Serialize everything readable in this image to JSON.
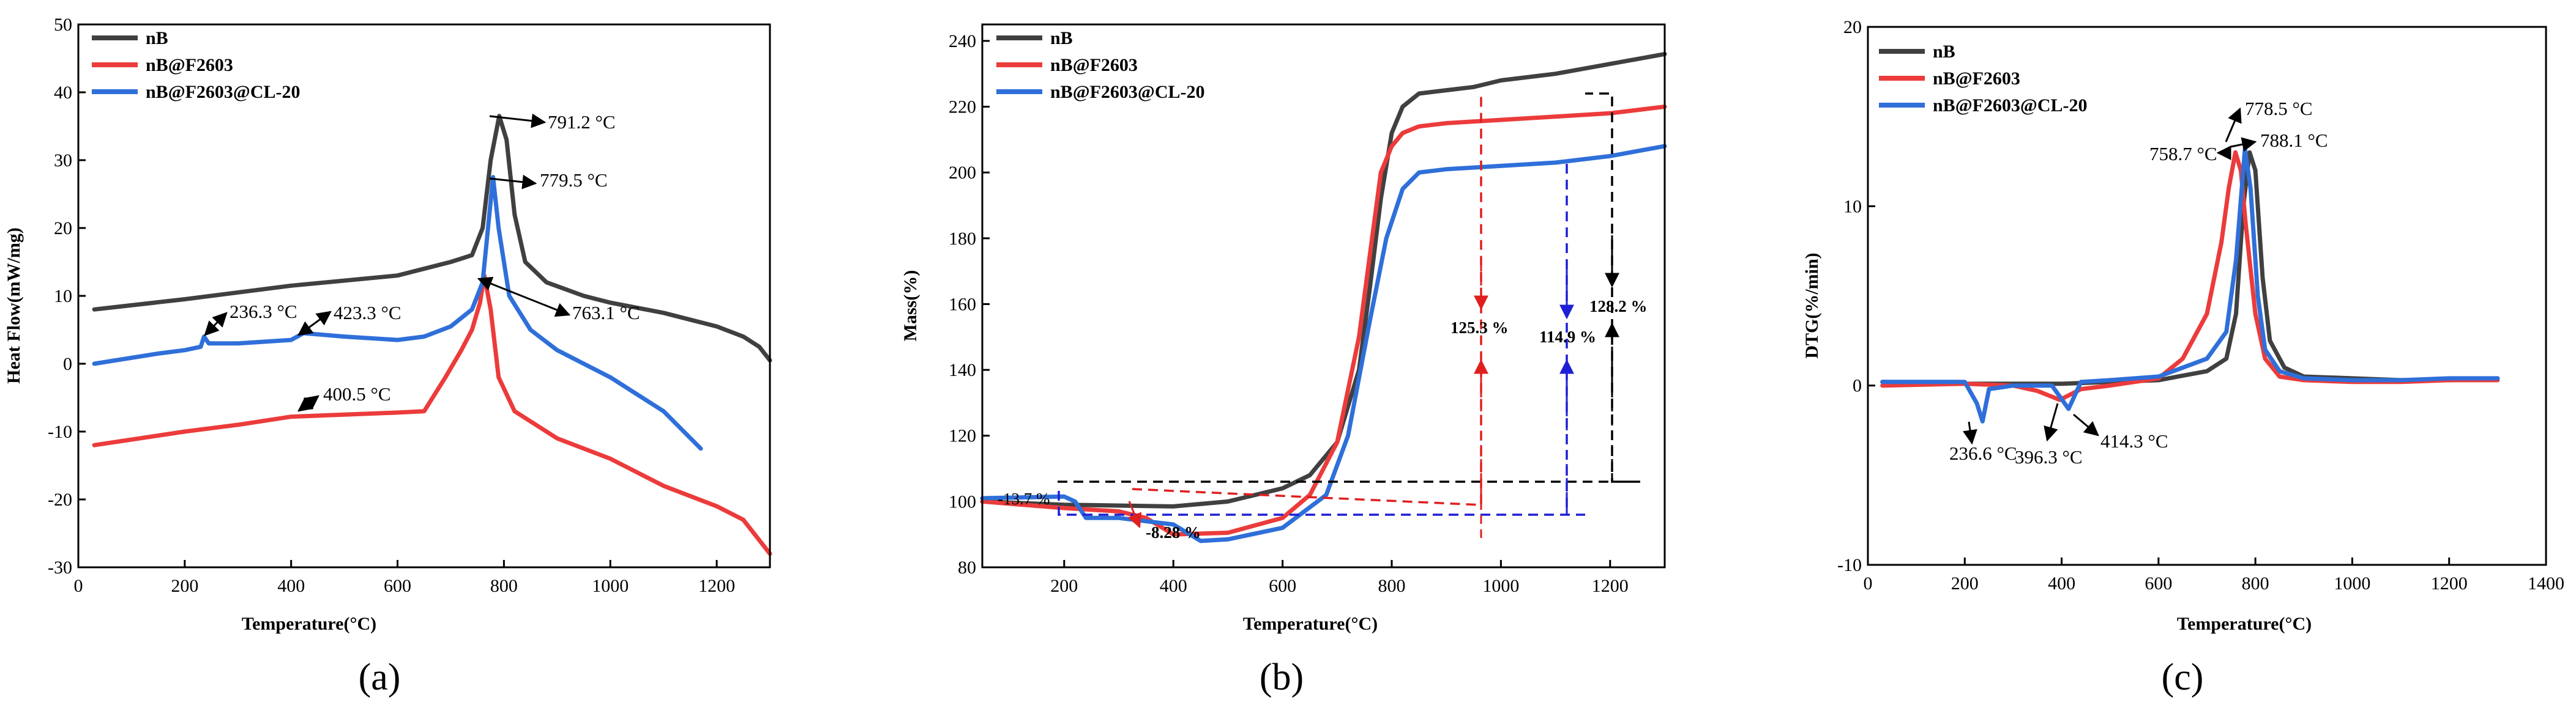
{
  "figure": {
    "panel_labels": [
      "(a)",
      "(b)",
      "(c)"
    ]
  },
  "colors": {
    "nB": "#404040",
    "nB@F2603": "#ec3b3b",
    "nB@F2603@CL-20": "#2f6fd9",
    "blue_annot": "#1f1fd6",
    "red_annot": "#e01f1f",
    "black_annot": "#000000"
  },
  "chart_data": [
    {
      "id": "a",
      "type": "line",
      "title": "",
      "xlabel": "Temperature(°C)",
      "ylabel": "Heat Flow(mW/mg)",
      "xlim": [
        0,
        1300
      ],
      "ylim": [
        -30,
        50
      ],
      "xticks": [
        0,
        200,
        400,
        600,
        800,
        1000,
        1200
      ],
      "yticks": [
        -30,
        -20,
        -10,
        0,
        10,
        20,
        30,
        40,
        50
      ],
      "legend": {
        "position": "top-left",
        "entries": [
          "nB",
          "nB@F2603",
          "nB@F2603@CL-20"
        ]
      },
      "series": [
        {
          "name": "nB",
          "x": [
            30,
            200,
            400,
            600,
            700,
            740,
            760,
            775,
            791.2,
            805,
            820,
            840,
            880,
            950,
            1000,
            1100,
            1200,
            1250,
            1280,
            1300
          ],
          "y": [
            8,
            9.5,
            11.5,
            13,
            15,
            16,
            20,
            30,
            36.5,
            33,
            22,
            15,
            12,
            10,
            9,
            7.5,
            5.5,
            4,
            2.5,
            0.5
          ]
        },
        {
          "name": "nB@F2603",
          "x": [
            30,
            200,
            300,
            400.5,
            500,
            600,
            650,
            690,
            720,
            740,
            755,
            763.1,
            775,
            790,
            820,
            900,
            1000,
            1100,
            1200,
            1250,
            1300
          ],
          "y": [
            -12,
            -10,
            -9,
            -7.8,
            -7.5,
            -7.2,
            -7,
            -2,
            2,
            5,
            9,
            13,
            8,
            -2,
            -7,
            -11,
            -14,
            -18,
            -21,
            -23,
            -28
          ]
        },
        {
          "name": "nB@F2603@CL-20",
          "x": [
            30,
            150,
            200,
            230,
            236.3,
            245,
            300,
            400,
            423.3,
            500,
            600,
            650,
            700,
            740,
            760,
            779.5,
            790,
            810,
            850,
            900,
            1000,
            1100,
            1170
          ],
          "y": [
            0,
            1.5,
            2,
            2.5,
            4,
            3,
            3,
            3.5,
            4.5,
            4,
            3.5,
            4,
            5.5,
            8,
            12,
            27.5,
            20,
            10,
            5,
            2,
            -2,
            -7,
            -12.5
          ]
        }
      ],
      "annotations": [
        {
          "text": "791.2 °C",
          "x": 791.2,
          "y": 36.5
        },
        {
          "text": "779.5 °C",
          "x": 779.5,
          "y": 27.5
        },
        {
          "text": "763.1 °C",
          "x": 763.1,
          "y": 13
        },
        {
          "text": "236.3 °C",
          "x": 236.3,
          "y": 4
        },
        {
          "text": "423.3 °C",
          "x": 423.3,
          "y": 4.5
        },
        {
          "text": "400.5 °C",
          "x": 400.5,
          "y": -7.8
        }
      ]
    },
    {
      "id": "b",
      "type": "line",
      "title": "",
      "xlabel": "Temperature(°C)",
      "ylabel": "Mass(%)",
      "xlim": [
        50,
        1300
      ],
      "ylim": [
        80,
        245
      ],
      "xticks": [
        200,
        400,
        600,
        800,
        1000,
        1200
      ],
      "yticks": [
        80,
        100,
        120,
        140,
        160,
        180,
        200,
        220,
        240
      ],
      "legend": {
        "position": "top-left",
        "entries": [
          "nB",
          "nB@F2603",
          "nB@F2603@CL-20"
        ]
      },
      "series": [
        {
          "name": "nB",
          "x": [
            50,
            200,
            400,
            500,
            600,
            650,
            700,
            740,
            760,
            780,
            800,
            820,
            850,
            900,
            950,
            1000,
            1100,
            1200,
            1300
          ],
          "y": [
            100,
            99,
            98.5,
            100,
            104,
            108,
            118,
            140,
            165,
            192,
            212,
            220,
            224,
            225,
            226,
            228,
            230,
            233,
            236
          ]
        },
        {
          "name": "nB@F2603",
          "x": [
            50,
            200,
            300,
            350,
            400,
            500,
            600,
            650,
            700,
            740,
            760,
            780,
            800,
            820,
            850,
            900,
            1000,
            1100,
            1200,
            1300
          ],
          "y": [
            100,
            98,
            97,
            95,
            90,
            90.5,
            95,
            102,
            118,
            150,
            175,
            200,
            208,
            212,
            214,
            215,
            216,
            217,
            218,
            220
          ]
        },
        {
          "name": "nB@F2603@CL-20",
          "x": [
            50,
            200,
            220,
            240,
            300,
            400,
            450,
            500,
            600,
            680,
            720,
            760,
            790,
            820,
            850,
            900,
            1000,
            1100,
            1200,
            1300
          ],
          "y": [
            101,
            101.5,
            100,
            95,
            95,
            93,
            88,
            88.5,
            92,
            102,
            120,
            155,
            180,
            195,
            200,
            201,
            202,
            203,
            205,
            208
          ]
        }
      ],
      "annotations": [
        {
          "text": "-13.7 %",
          "color": "blue"
        },
        {
          "text": "-8.28 %",
          "color": "red"
        },
        {
          "text": "125.3 %",
          "color": "red"
        },
        {
          "text": "114.9 %",
          "color": "blue"
        },
        {
          "text": "128.2 %",
          "color": "black"
        }
      ]
    },
    {
      "id": "c",
      "type": "line",
      "title": "",
      "xlabel": "Temperature(°C)",
      "ylabel": "DTG(%/min)",
      "xlim": [
        0,
        1400
      ],
      "ylim": [
        -10,
        20
      ],
      "xticks": [
        0,
        200,
        400,
        600,
        800,
        1000,
        1200,
        1400
      ],
      "yticks": [
        -10,
        0,
        10,
        20
      ],
      "legend": {
        "position": "top-left",
        "entries": [
          "nB",
          "nB@F2603",
          "nB@F2603@CL-20"
        ]
      },
      "series": [
        {
          "name": "nB",
          "x": [
            30,
            200,
            400,
            600,
            700,
            740,
            760,
            775,
            788.1,
            800,
            815,
            830,
            860,
            900,
            1000,
            1100,
            1200,
            1300
          ],
          "y": [
            0.2,
            0.1,
            0.1,
            0.3,
            0.8,
            1.5,
            4,
            10,
            13,
            12,
            6,
            2.5,
            1,
            0.5,
            0.4,
            0.3,
            0.3,
            0.4
          ]
        },
        {
          "name": "nB@F2603",
          "x": [
            30,
            200,
            300,
            350,
            396.3,
            440,
            500,
            600,
            650,
            700,
            730,
            745,
            758.7,
            770,
            780,
            800,
            820,
            850,
            900,
            1000,
            1100,
            1200,
            1300
          ],
          "y": [
            0,
            0.1,
            0,
            -0.3,
            -0.8,
            -0.2,
            0,
            0.4,
            1.5,
            4,
            8,
            11,
            13,
            12,
            9,
            4,
            1.5,
            0.5,
            0.3,
            0.2,
            0.2,
            0.3,
            0.3
          ]
        },
        {
          "name": "nB@F2603@CL-20",
          "x": [
            30,
            200,
            225,
            236.6,
            250,
            300,
            380,
            414.3,
            440,
            500,
            600,
            700,
            740,
            760,
            778.5,
            790,
            805,
            820,
            850,
            900,
            1000,
            1100,
            1200,
            1300
          ],
          "y": [
            0.2,
            0.2,
            -1,
            -2,
            -0.2,
            0,
            0,
            -1.3,
            0.2,
            0.3,
            0.5,
            1.5,
            3,
            7,
            13.2,
            11,
            5,
            2,
            0.8,
            0.4,
            0.3,
            0.3,
            0.4,
            0.4
          ]
        }
      ],
      "annotations": [
        {
          "text": "778.5 °C",
          "x": 778.5,
          "y": 13.2
        },
        {
          "text": "758.7 °C",
          "x": 758.7,
          "y": 13
        },
        {
          "text": "788.1 °C",
          "x": 788.1,
          "y": 13
        },
        {
          "text": "236.6 °C",
          "x": 236.6,
          "y": -2
        },
        {
          "text": "396.3 °C",
          "x": 396.3,
          "y": -0.8
        },
        {
          "text": "414.3 °C",
          "x": 414.3,
          "y": -1.3
        }
      ]
    }
  ]
}
